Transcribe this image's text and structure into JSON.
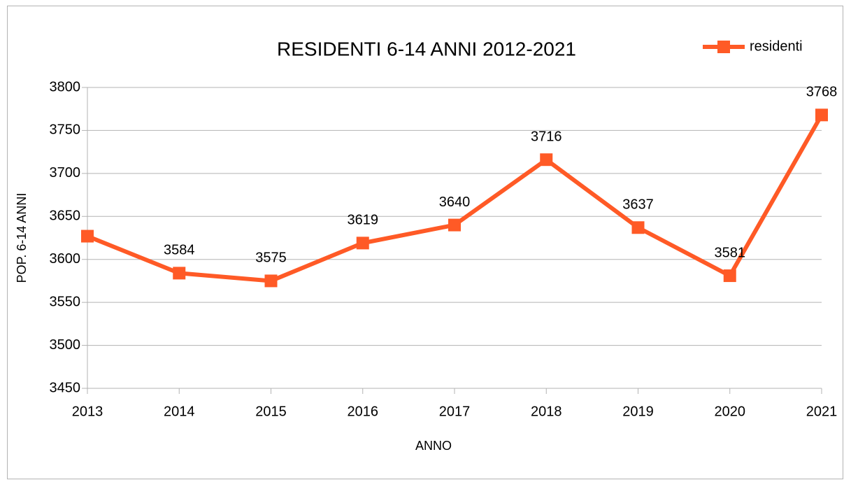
{
  "chart_data": {
    "type": "line",
    "title": "RESIDENTI 6-14 ANNI 2012-2021",
    "x_label": "ANNO",
    "y_label": "POP. 6-14 ANNI",
    "categories": [
      "2013",
      "2014",
      "2015",
      "2016",
      "2017",
      "2018",
      "2019",
      "2020",
      "2021"
    ],
    "series": [
      {
        "name": "residenti",
        "color": "#ff5a26",
        "values": [
          3627,
          3584,
          3575,
          3619,
          3640,
          3716,
          3637,
          3581,
          3768
        ],
        "value_labels": [
          null,
          "3584",
          "3575",
          "3619",
          "3640",
          "3716",
          "3637",
          "3581",
          "3768"
        ]
      }
    ],
    "ylim": [
      3450,
      3800
    ],
    "yticks": [
      3450,
      3500,
      3550,
      3600,
      3650,
      3700,
      3750,
      3800
    ],
    "grid": true,
    "legend": "top-right"
  }
}
